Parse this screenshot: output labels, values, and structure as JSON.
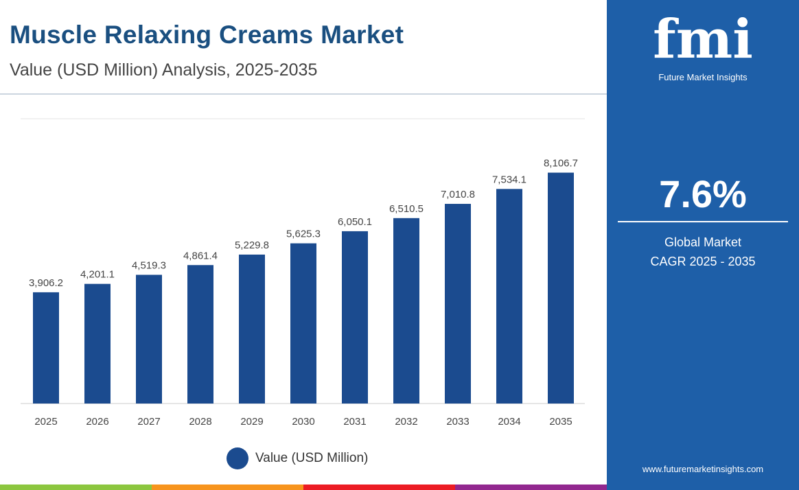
{
  "header": {
    "title": "Muscle Relaxing Creams Market",
    "subtitle": "Value (USD Million) Analysis, 2025-2035"
  },
  "side": {
    "logo": "fmi",
    "logo_sub": "Future Market Insights",
    "cagr": "7.6%",
    "cagr_label1": "Global Market",
    "cagr_label2": "CAGR 2025 - 2035",
    "website": "www.futuremarketinsights.com",
    "color": "#1e5fa8"
  },
  "chart_data": {
    "type": "bar",
    "title": "Muscle Relaxing Creams Market",
    "subtitle": "Value (USD Million) Analysis, 2025-2035",
    "categories": [
      "2025",
      "2026",
      "2027",
      "2028",
      "2029",
      "2030",
      "2031",
      "2032",
      "2033",
      "2034",
      "2035"
    ],
    "values": [
      3906.2,
      4201.1,
      4519.3,
      4861.4,
      5229.8,
      5625.3,
      6050.1,
      6510.5,
      7010.8,
      7534.1,
      8106.7
    ],
    "labels": [
      "3,906.2",
      "4,201.1",
      "4,519.3",
      "4,861.4",
      "5,229.8",
      "5,625.3",
      "6,050.1",
      "6,510.5",
      "7,010.8",
      "7,534.1",
      "8,106.7"
    ],
    "series_name": "Value (USD Million)",
    "ylim": [
      0,
      10000
    ],
    "legend": "bottom",
    "bar_color": "#1b4b8f"
  },
  "strip_colors": [
    "#8cc63f",
    "#f7941d",
    "#ec1c24",
    "#92278f"
  ]
}
